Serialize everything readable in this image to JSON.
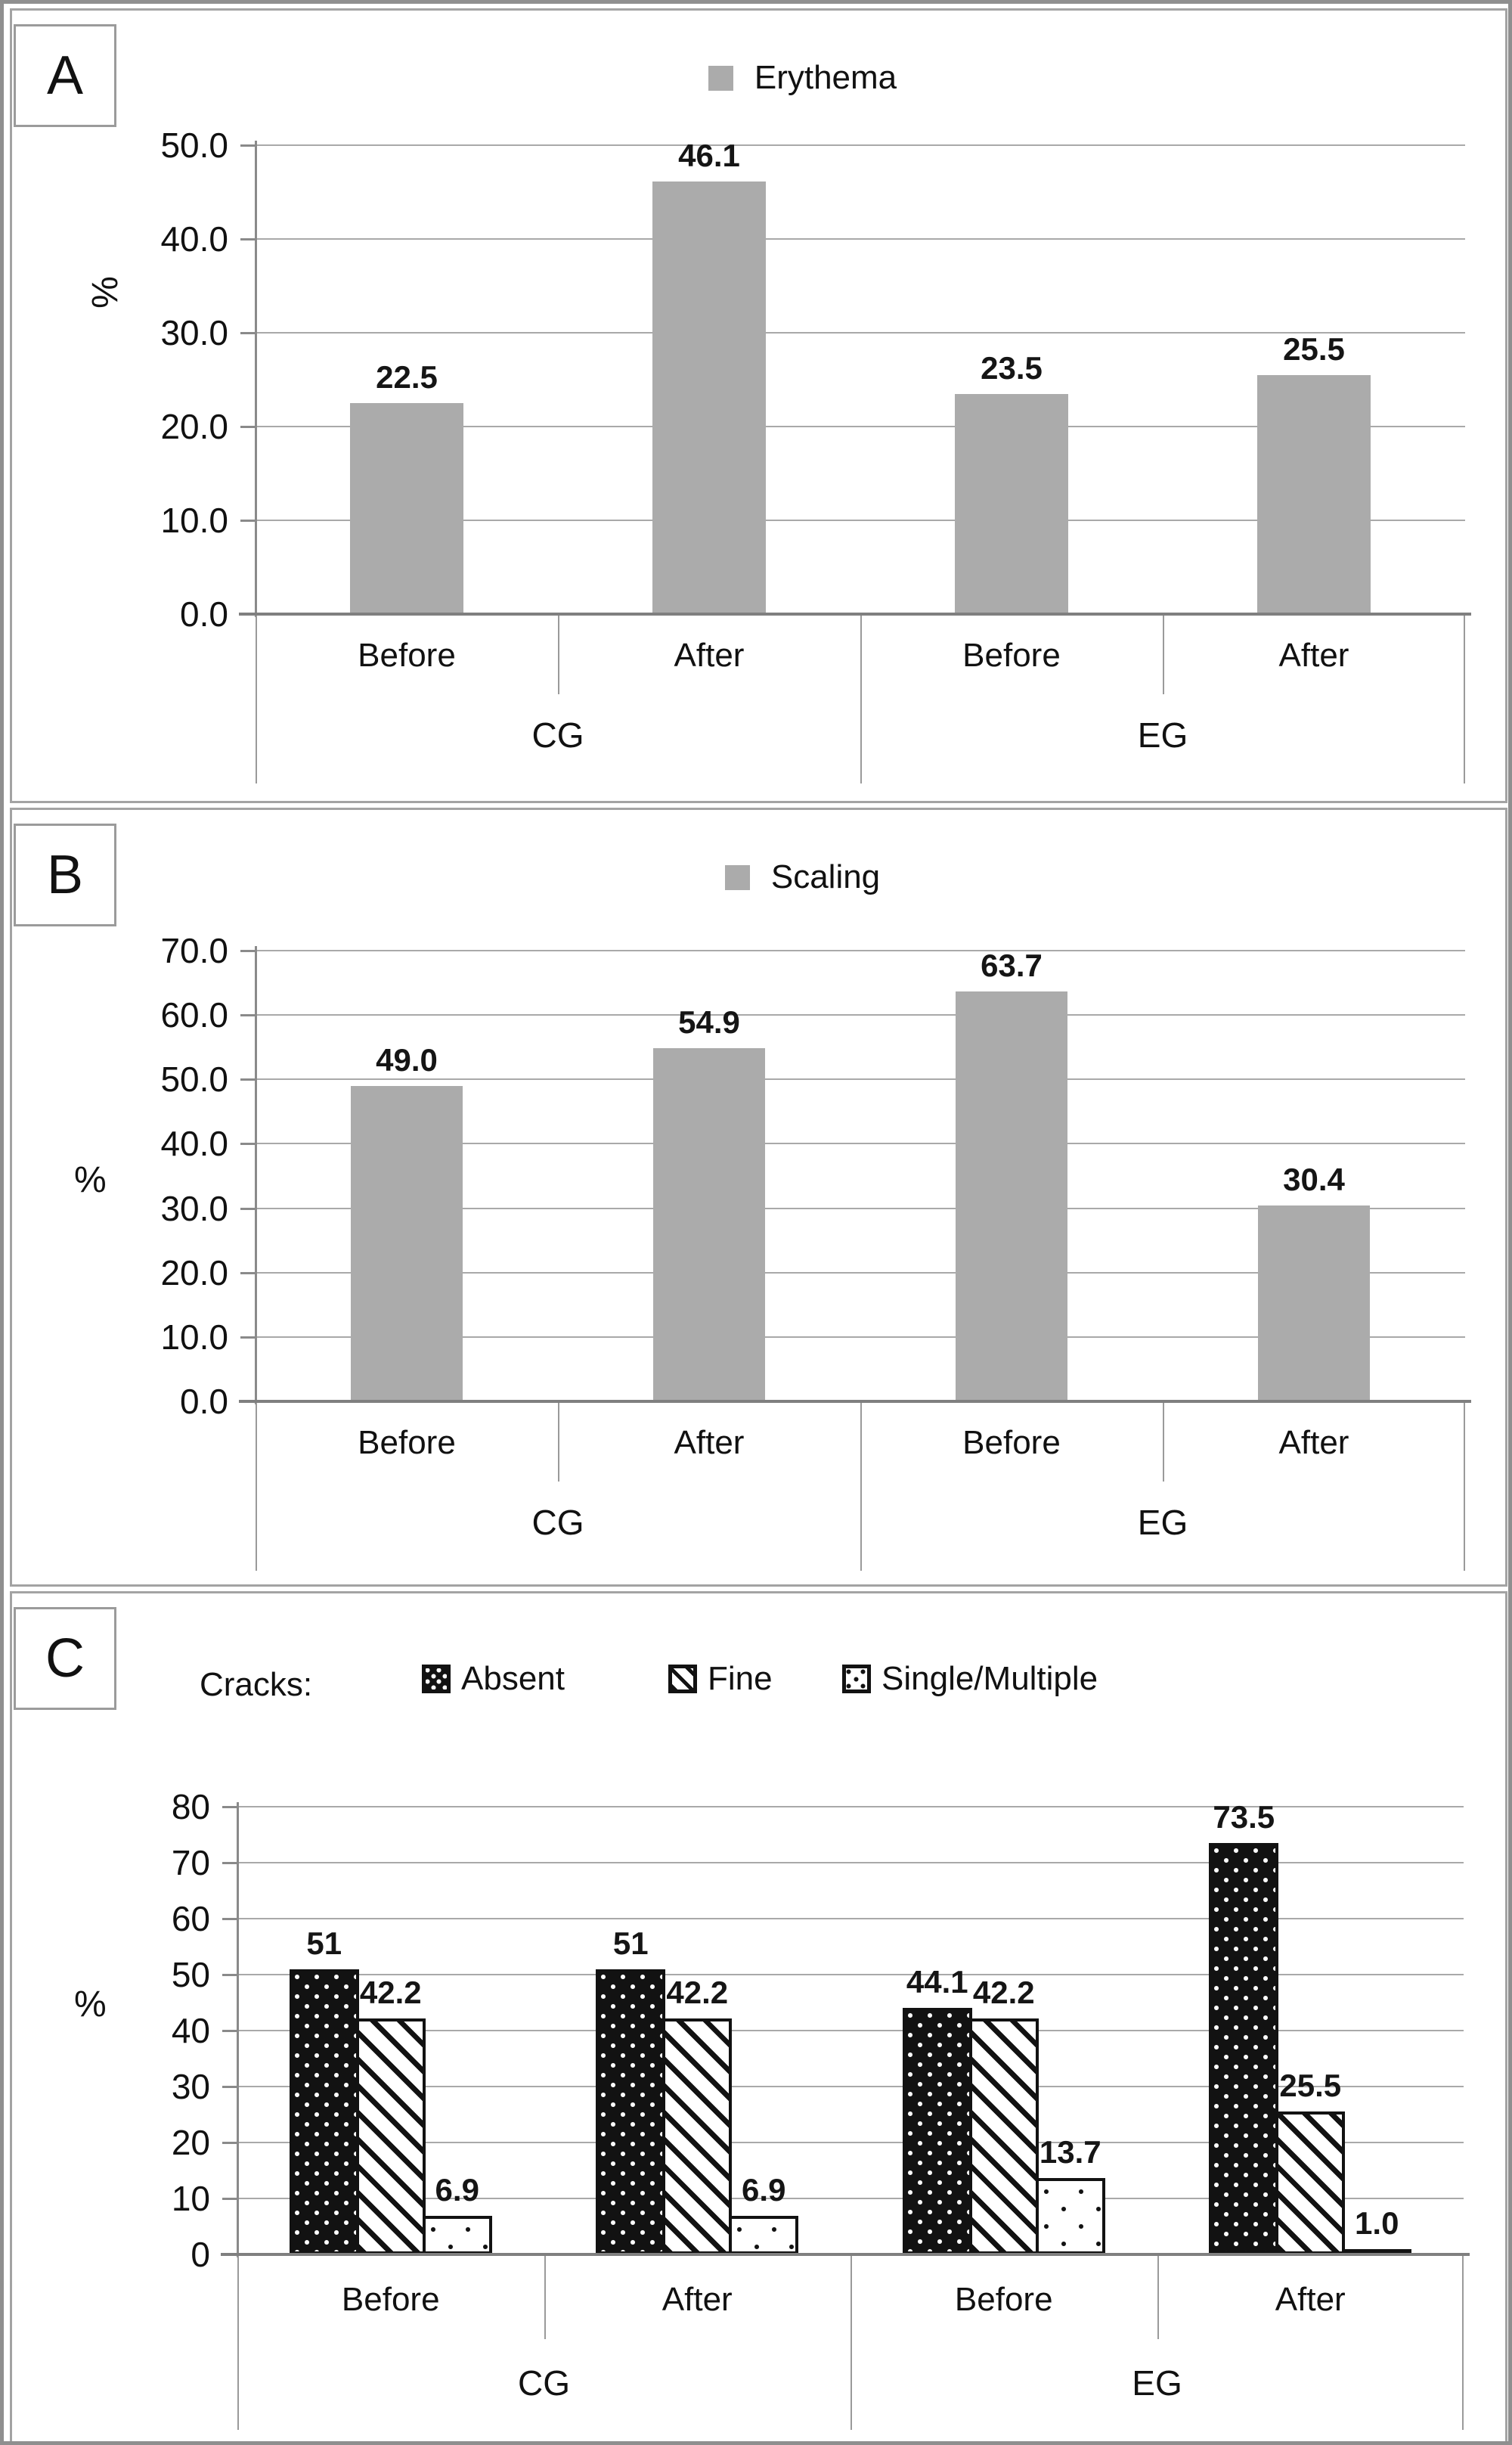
{
  "figure": {
    "description": "Three-panel bar chart figure comparing control group (CG) and experimental group (EG) before and after treatment",
    "palette": {
      "bar_gray": "#ababab",
      "pattern_black": "#121212",
      "gridline": "#a9a9a9",
      "axis": "#7f7f7f",
      "panel_border": "#a3a3a3",
      "text": "#111111",
      "background": "#ffffff"
    }
  },
  "chart_data": [
    {
      "type": "bar",
      "panel": "A",
      "title": "",
      "legend": [
        "Erythema"
      ],
      "legend_position": "top-center",
      "ylabel": "%",
      "ylim": [
        0,
        50
      ],
      "ytick_step": 10,
      "ytick_decimals": 1,
      "grid": true,
      "group_labels": [
        "CG",
        "EG"
      ],
      "categories": [
        "Before",
        "After",
        "Before",
        "After"
      ],
      "series": [
        {
          "name": "Erythema",
          "pattern": "solid-gray",
          "values": [
            22.5,
            46.1,
            23.5,
            25.5
          ],
          "value_labels": [
            "22.5",
            "46.1",
            "23.5",
            "25.5"
          ]
        }
      ]
    },
    {
      "type": "bar",
      "panel": "B",
      "title": "",
      "legend": [
        "Scaling"
      ],
      "legend_position": "top-center",
      "ylabel": "%",
      "ylim": [
        0,
        70
      ],
      "ytick_step": 10,
      "ytick_decimals": 1,
      "grid": true,
      "group_labels": [
        "CG",
        "EG"
      ],
      "categories": [
        "Before",
        "After",
        "Before",
        "After"
      ],
      "series": [
        {
          "name": "Scaling",
          "pattern": "solid-gray",
          "values": [
            49.0,
            54.9,
            63.7,
            30.4
          ],
          "value_labels": [
            "49.0",
            "54.9",
            "63.7",
            "30.4"
          ]
        }
      ]
    },
    {
      "type": "bar",
      "panel": "C",
      "title": "",
      "legend_title": "Cracks:",
      "legend": [
        "Absent",
        "Fine",
        "Single/Multiple"
      ],
      "legend_position": "top-left-row",
      "ylabel": "%",
      "ylim": [
        0,
        80
      ],
      "ytick_step": 10,
      "ytick_decimals": 0,
      "grid": true,
      "group_labels": [
        "CG",
        "EG"
      ],
      "categories": [
        "Before",
        "After",
        "Before",
        "After"
      ],
      "series": [
        {
          "name": "Absent",
          "pattern": "dense-white-dots-on-black",
          "values": [
            51,
            51,
            44.1,
            73.5
          ],
          "value_labels": [
            "51",
            "51",
            "44.1",
            "73.5"
          ]
        },
        {
          "name": "Fine",
          "pattern": "diagonal-hatch",
          "values": [
            42.2,
            42.2,
            42.2,
            25.5
          ],
          "value_labels": [
            "42.2",
            "42.2",
            "42.2",
            "25.5"
          ]
        },
        {
          "name": "Single/Multiple",
          "pattern": "sparse-black-dots",
          "values": [
            6.9,
            6.9,
            13.7,
            1.0
          ],
          "value_labels": [
            "6.9",
            "6.9",
            "13.7",
            "1.0"
          ]
        }
      ]
    }
  ]
}
